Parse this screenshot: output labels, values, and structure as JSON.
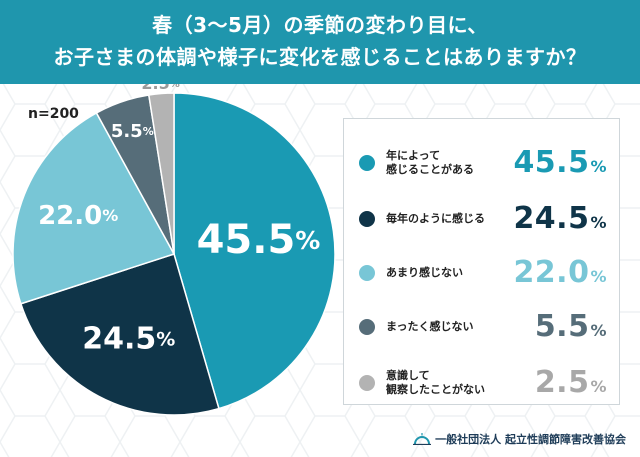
{
  "title_line1": "春（3〜5月）の季節の変わり目に、",
  "title_line2": "お子さまの体調や様子に変化を感じることはありますか？",
  "sample_size": "n=200",
  "footer_org": "一般社団法人 起立性調節障害改善協会",
  "colors": {
    "header_bg": "#1f96ad",
    "series": [
      "#1a9ab3",
      "#0f3448",
      "#78c6d6",
      "#566d79",
      "#b3b3b3"
    ]
  },
  "chart_data": {
    "type": "pie",
    "title": "",
    "start_angle": "12 o'clock, clockwise",
    "slices": [
      {
        "label": "年によって感じることがある",
        "label_lines": [
          "年によって",
          "感じることがある"
        ],
        "value": 45.5,
        "display": "45.5%",
        "color": "#1a9ab3"
      },
      {
        "label": "毎年のように感じる",
        "label_lines": [
          "毎年のように感じる"
        ],
        "value": 24.5,
        "display": "24.5%",
        "color": "#0f3448"
      },
      {
        "label": "あまり感じない",
        "label_lines": [
          "あまり感じない"
        ],
        "value": 22.0,
        "display": "22.0%",
        "color": "#78c6d6"
      },
      {
        "label": "まったく感じない",
        "label_lines": [
          "まったく感じない"
        ],
        "value": 5.5,
        "display": "5.5%",
        "color": "#566d79"
      },
      {
        "label": "意識して観察したことがない",
        "label_lines": [
          "意識して",
          "観察したことがない"
        ],
        "value": 2.5,
        "display": "2.5%",
        "color": "#b3b3b3"
      }
    ],
    "legend_position": "right"
  }
}
